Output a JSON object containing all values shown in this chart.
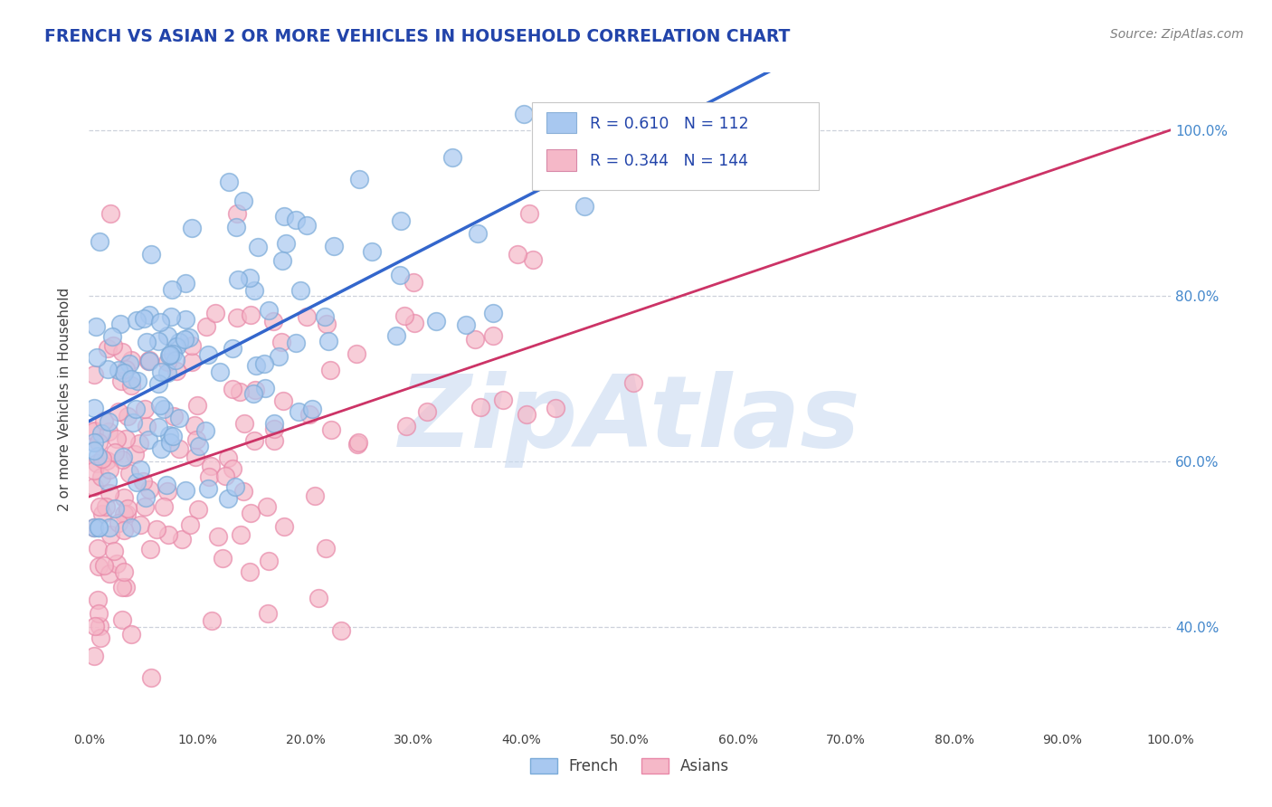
{
  "title": "FRENCH VS ASIAN 2 OR MORE VEHICLES IN HOUSEHOLD CORRELATION CHART",
  "source": "Source: ZipAtlas.com",
  "ylabel": "2 or more Vehicles in Household",
  "xlabel": "",
  "watermark": "ZipAtlas",
  "legend_french": {
    "R": 0.61,
    "N": 112
  },
  "legend_asian": {
    "R": 0.344,
    "N": 144
  },
  "xlim": [
    0.0,
    1.0
  ],
  "ylim": [
    0.28,
    1.07
  ],
  "xtick_vals": [
    0.0,
    0.1,
    0.2,
    0.3,
    0.4,
    0.5,
    0.6,
    0.7,
    0.8,
    0.9,
    1.0
  ],
  "xtick_labels": [
    "0.0%",
    "10.0%",
    "20.0%",
    "30.0%",
    "40.0%",
    "50.0%",
    "60.0%",
    "70.0%",
    "80.0%",
    "90.0%",
    "100.0%"
  ],
  "ytick_vals": [
    0.4,
    0.6,
    0.8,
    1.0
  ],
  "ytick_labels": [
    "40.0%",
    "60.0%",
    "80.0%",
    "100.0%"
  ],
  "french_color": "#a8c8f0",
  "french_edge_color": "#7aaad8",
  "asian_color": "#f5b8c8",
  "asian_edge_color": "#e888a8",
  "french_line_color": "#3366cc",
  "asian_line_color": "#cc3366",
  "title_color": "#2244aa",
  "source_color": "#808080",
  "watermark_color": "#c8daf0",
  "tick_color": "#4488cc",
  "grid_color": "#c8ccd8",
  "legend_box_color": "#e0e8f8",
  "legend_text_color": "#2244aa"
}
